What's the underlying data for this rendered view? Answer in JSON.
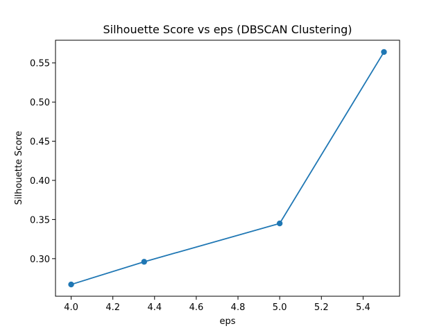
{
  "chart_data": {
    "type": "line",
    "title": "Silhouette Score vs eps (DBSCAN Clustering)",
    "xlabel": "eps",
    "ylabel": "Silhouette Score",
    "x": [
      4.0,
      4.35,
      5.0,
      5.5
    ],
    "series": [
      {
        "values": [
          0.267,
          0.296,
          0.345,
          0.564
        ],
        "color": "#1f77b4",
        "marker": "circle"
      }
    ],
    "xlim": [
      3.925,
      5.575
    ],
    "ylim": [
      0.252,
      0.579
    ],
    "xticks": [
      4.0,
      4.2,
      4.4,
      4.6,
      4.8,
      5.0,
      5.2,
      5.4
    ],
    "xtick_labels": [
      "4.0",
      "4.2",
      "4.4",
      "4.6",
      "4.8",
      "5.0",
      "5.2",
      "5.4"
    ],
    "yticks": [
      0.3,
      0.35,
      0.4,
      0.45,
      0.5,
      0.55
    ],
    "ytick_labels": [
      "0.30",
      "0.35",
      "0.40",
      "0.45",
      "0.50",
      "0.55"
    ],
    "grid": false,
    "legend": "none"
  }
}
